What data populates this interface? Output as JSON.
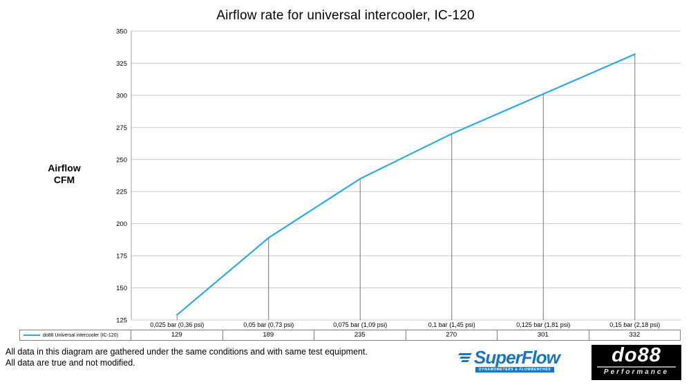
{
  "chart_data": {
    "type": "line",
    "title": "Airflow rate for universal intercooler, IC-120",
    "categories": [
      "0,025 bar (0,36 psi)",
      "0,05 bar (0,73 psi)",
      "0,075 bar (1,09 psi)",
      "0,1 bar (1,45 psi)",
      "0,125 bar (1,81 psi)",
      "0,15 bar (2,18 psi)"
    ],
    "series": [
      {
        "name": "do88 Universal intercooler (IC-120)",
        "values": [
          129,
          189,
          235,
          270,
          301,
          332
        ],
        "color": "#29abe2"
      }
    ],
    "xlabel": "",
    "ylabel": "Airflow CFM",
    "ylabel_lines": [
      "Airflow",
      "CFM"
    ],
    "ylim": [
      125,
      350
    ],
    "ytick_step": 25,
    "grid": true,
    "drop_lines": true,
    "legend_position": "bottom-left data table"
  },
  "footer": {
    "line1": "All data in this diagram are gathered under the same conditions and with same test equipment.",
    "line2": "All data are true and not modified."
  },
  "logos": {
    "superflow": {
      "wordmark": "SuperFlow",
      "tagline": "DYNAMOMETERS & FLOWBENCHES"
    },
    "do88": {
      "wordmark": "do88",
      "tagline": "Performance"
    }
  },
  "colors": {
    "series_line": "#29abe2",
    "grid": "#c9c9c9",
    "drop_line": "#737373",
    "axis_line": "#9e9e9e",
    "table_border": "#808080",
    "superflow_blue": "#1b75bc",
    "do88_bg": "#000000"
  }
}
